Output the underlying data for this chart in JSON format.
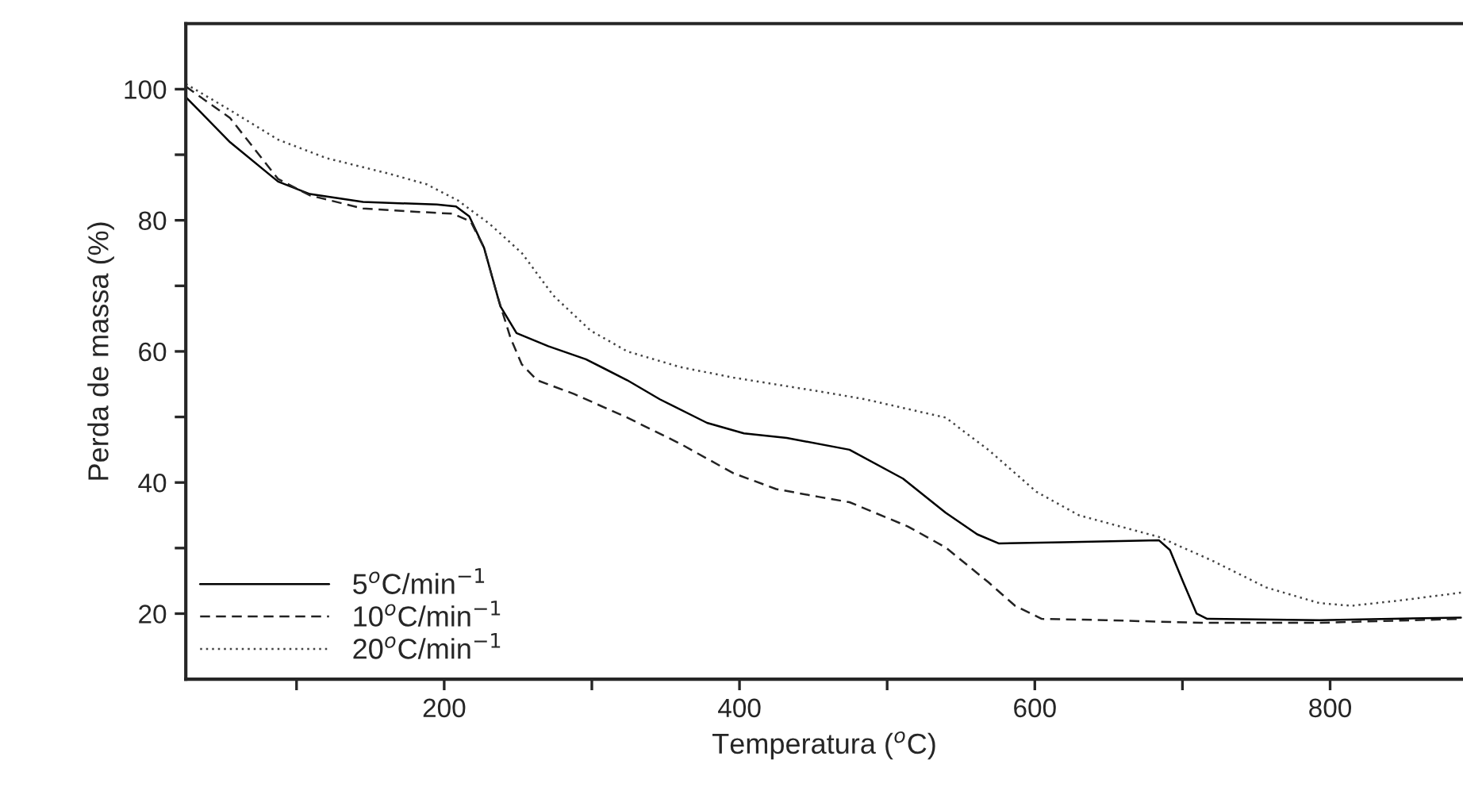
{
  "chart_data": {
    "type": "line",
    "xlabel": "Temperatura ($^{o}$C)",
    "ylabel": "Perda de massa (%)",
    "xlim": [
      25,
      890
    ],
    "ylim": [
      10,
      110
    ],
    "xticks": [
      {
        "value": 100,
        "label": null
      },
      200,
      {
        "value": 300,
        "label": null
      },
      400,
      {
        "value": 500,
        "label": null
      },
      600,
      {
        "value": 700,
        "label": null
      },
      800
    ],
    "yticks": [
      20,
      {
        "value": 30,
        "label": null
      },
      40,
      {
        "value": 50,
        "label": null
      },
      60,
      {
        "value": 70,
        "label": null
      },
      80,
      {
        "value": 90,
        "label": null
      },
      100
    ],
    "grid": false,
    "legend": "bottom left",
    "series": [
      {
        "name": "5$^{o}$C/min$^{−1}$",
        "color": "#000000",
        "line_style": "solid",
        "x": [
          25,
          55,
          87.5,
          109,
          145,
          195,
          208,
          217,
          227,
          238,
          249,
          270.5,
          296,
          324,
          346,
          378,
          403,
          432,
          474.5,
          510.7,
          539.6,
          561,
          575.8,
          619,
          684,
          691.5,
          700.5,
          709.6,
          716.8,
          792.8,
          888.6
        ],
        "values": [
          98.8,
          91.9,
          85.9,
          84,
          82.8,
          82.4,
          82.1,
          80.6,
          75.8,
          66.9,
          62.8,
          60.8,
          58.8,
          55.6,
          52.7,
          49.1,
          47.5,
          46.8,
          45,
          40.6,
          35.4,
          32.1,
          30.7,
          30.9,
          31.2,
          29.7,
          24.8,
          20,
          19.2,
          19,
          19.4
        ]
      },
      {
        "name": "10$^{o}$C/min$^{−1}$",
        "color": "#222222",
        "line_style": "dashed",
        "x": [
          25,
          55,
          87.5,
          109,
          145,
          181,
          206,
          218,
          227,
          236,
          245,
          252.6,
          263,
          288,
          324,
          360,
          396,
          424.9,
          454,
          474.5,
          514,
          539.6,
          568.5,
          586.6,
          604.7,
          648,
          713,
          792.8,
          888.6
        ],
        "values": [
          100.4,
          95.6,
          86.3,
          83.8,
          81.8,
          81.3,
          81,
          79.8,
          75.8,
          68.5,
          62,
          58,
          55.6,
          53.5,
          49.9,
          45.9,
          41.4,
          39,
          37.8,
          37,
          33.3,
          30.1,
          24.8,
          21.2,
          19.2,
          19,
          18.6,
          18.6,
          19.2
        ]
      },
      {
        "name": "20$^{o}$C/min$^{−1}$",
        "color": "#444444",
        "line_style": "dotted",
        "x": [
          25,
          55,
          87.5,
          120,
          162.8,
          188,
          209.5,
          231,
          252.6,
          274,
          299,
          324,
          360,
          396,
          454,
          485,
          539.6,
          568.5,
          601,
          629.9,
          684,
          720,
          756.6,
          792.8,
          814.5,
          847,
          888.6
        ],
        "values": [
          100.8,
          96.8,
          92.3,
          89.5,
          87.1,
          85.5,
          83,
          79.4,
          75,
          68.5,
          63.2,
          60,
          57.6,
          56,
          53.9,
          52.7,
          49.9,
          45,
          38.6,
          35,
          31.7,
          28.1,
          24,
          21.6,
          21.2,
          22,
          23.2
        ]
      }
    ]
  }
}
